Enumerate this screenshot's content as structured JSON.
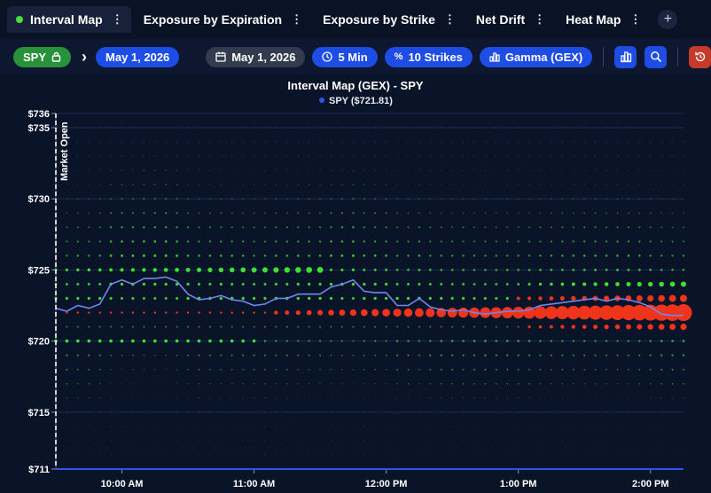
{
  "tabs": [
    {
      "label": "Interval Map",
      "active": true
    },
    {
      "label": "Exposure by Expiration",
      "active": false
    },
    {
      "label": "Exposure by Strike",
      "active": false
    },
    {
      "label": "Net Drift",
      "active": false
    },
    {
      "label": "Heat Map",
      "active": false
    }
  ],
  "toolbar": {
    "symbol": "SPY",
    "date_selected": "May 1, 2026",
    "date_picker": "May 1, 2026",
    "interval": "5 Min",
    "strikes": "10 Strikes",
    "metric": "Gamma (GEX)"
  },
  "colors": {
    "positive": "#3ee030",
    "negative": "#f0341c",
    "price_line": "#6f86f0",
    "accent": "#1e4de6"
  },
  "chart_data": {
    "type": "scatter",
    "title": "Interval Map (GEX) - SPY",
    "legend": "SPY ($721.81)",
    "annotation": "Market Open",
    "y_ticks": [
      "$711",
      "$715",
      "$720",
      "$725",
      "$730",
      "$735",
      "$736"
    ],
    "y_tick_values": [
      711,
      715,
      720,
      725,
      730,
      735,
      736
    ],
    "x_ticks": [
      "10:00 AM",
      "11:00 AM",
      "12:00 PM",
      "1:00 PM",
      "2:00 PM"
    ],
    "ylim": [
      711,
      736
    ],
    "strikes": [
      735,
      734,
      733,
      732,
      731,
      730,
      729,
      728,
      727,
      726,
      725,
      724,
      723,
      722,
      721,
      720,
      719,
      718,
      717,
      716,
      715,
      714,
      713,
      712
    ],
    "time_range_minutes": [
      570,
      855
    ],
    "price_series": {
      "name": "SPY",
      "times": [
        570,
        575,
        580,
        585,
        590,
        595,
        600,
        605,
        610,
        615,
        620,
        625,
        630,
        635,
        640,
        645,
        650,
        655,
        660,
        665,
        670,
        675,
        680,
        685,
        690,
        695,
        700,
        705,
        710,
        715,
        720,
        725,
        730,
        735,
        740,
        745,
        750,
        755,
        760,
        765,
        770,
        775,
        780,
        785,
        790,
        795,
        800,
        805,
        810,
        815,
        820,
        825,
        830,
        835,
        840,
        845,
        850,
        855
      ],
      "prices": [
        722.3,
        722.1,
        722.5,
        722.3,
        722.6,
        724.0,
        724.3,
        724.0,
        724.4,
        724.4,
        724.5,
        724.2,
        723.3,
        722.9,
        723.0,
        723.2,
        722.9,
        722.8,
        722.5,
        722.6,
        723.0,
        723.0,
        723.3,
        723.3,
        723.3,
        723.8,
        724.0,
        724.3,
        723.5,
        723.4,
        723.4,
        722.5,
        722.5,
        723.0,
        722.4,
        722.2,
        722.1,
        722.2,
        722.0,
        721.9,
        722.0,
        722.1,
        722.1,
        722.2,
        722.5,
        722.6,
        722.7,
        722.8,
        722.9,
        723.0,
        722.8,
        723.0,
        722.9,
        722.7,
        722.4,
        721.9,
        721.8,
        721.81
      ]
    }
  }
}
